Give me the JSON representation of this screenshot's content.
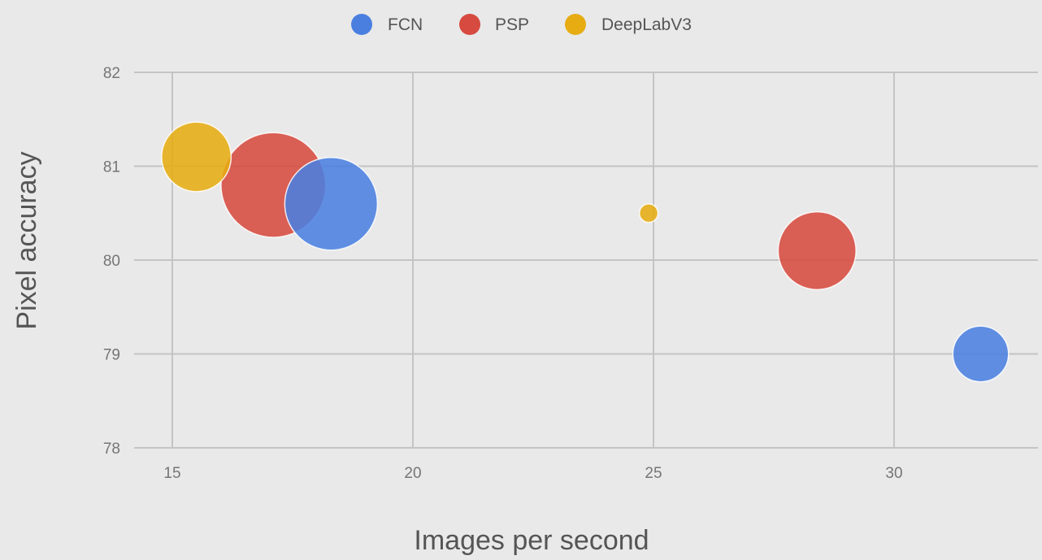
{
  "chart_data": {
    "type": "scatter",
    "bubble": true,
    "xlabel": "Images per second",
    "ylabel": "Pixel accuracy",
    "xlim": [
      14.2,
      33
    ],
    "ylim": [
      78,
      82
    ],
    "xticks": [
      15,
      20,
      25,
      30
    ],
    "yticks": [
      78,
      79,
      80,
      81,
      82
    ],
    "grid": true,
    "legend_position": "top",
    "series": [
      {
        "name": "FCN",
        "color": "#4a7fe0",
        "points": [
          {
            "x": 18.3,
            "y": 80.6,
            "size": 1.0
          },
          {
            "x": 31.8,
            "y": 79.0,
            "size": 0.6
          }
        ]
      },
      {
        "name": "PSP",
        "color": "#d64a3f",
        "points": [
          {
            "x": 17.1,
            "y": 80.8,
            "size": 1.13
          },
          {
            "x": 28.4,
            "y": 80.1,
            "size": 0.84
          }
        ]
      },
      {
        "name": "DeepLabV3",
        "color": "#e6ac12",
        "points": [
          {
            "x": 15.5,
            "y": 81.1,
            "size": 0.75
          },
          {
            "x": 24.9,
            "y": 80.5,
            "size": 0.2
          }
        ]
      }
    ]
  }
}
